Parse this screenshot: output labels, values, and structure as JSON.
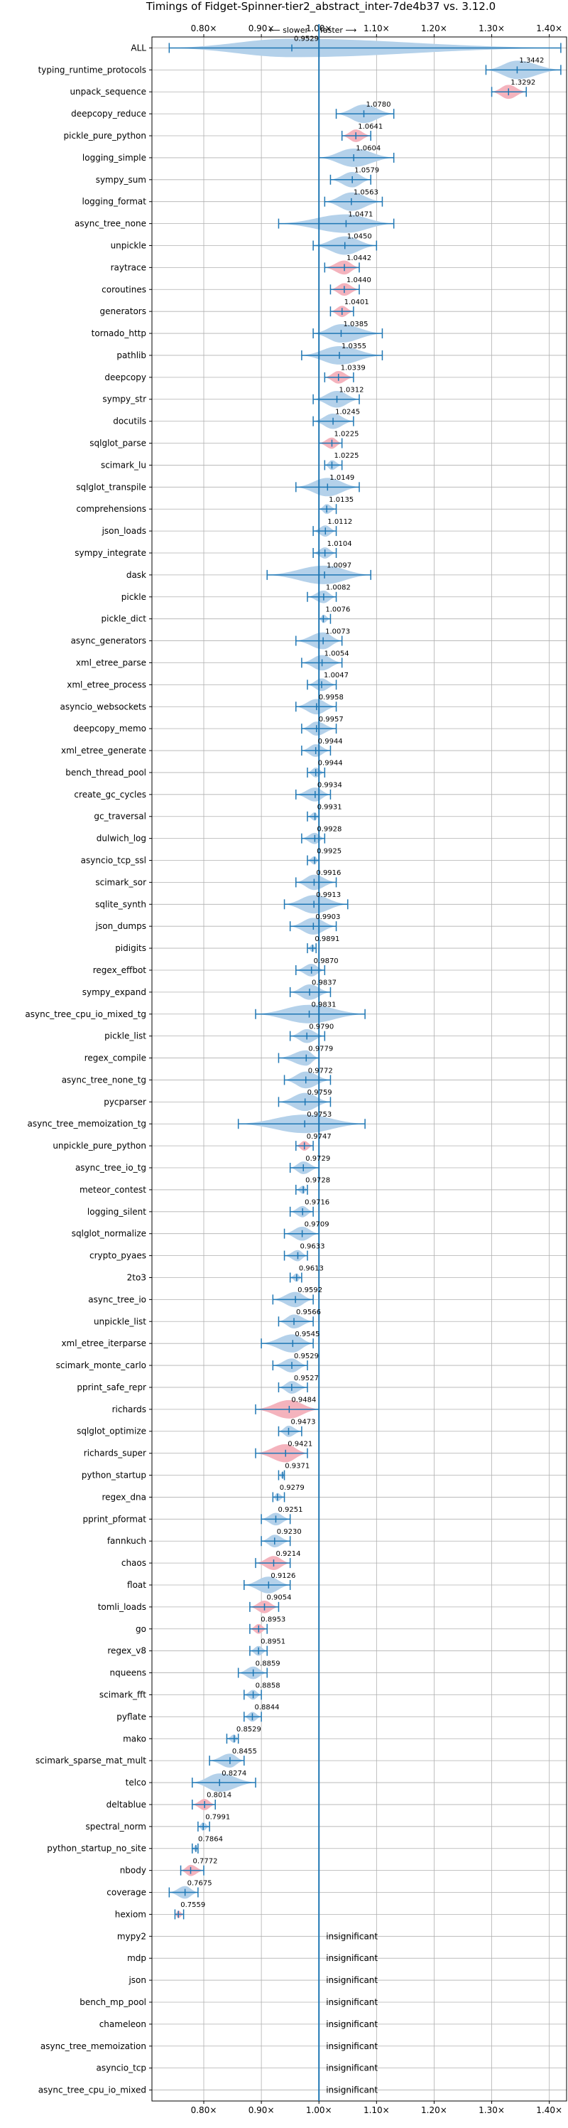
{
  "chart_data": {
    "type": "violin",
    "title": "Timings of Fidget-Spinner-tier2_abstract_inter-7de4b37 vs. 3.12.0",
    "direction_slower": "⟵ slower",
    "direction_faster": "faster ⟶",
    "xlim": [
      0.71,
      1.43
    ],
    "x_ticks": [
      {
        "value": 0.8,
        "label": "0.80×"
      },
      {
        "value": 0.9,
        "label": "0.90×"
      },
      {
        "value": 1.0,
        "label": "1.00×"
      },
      {
        "value": 1.1,
        "label": "1.10×"
      },
      {
        "value": 1.2,
        "label": "1.20×"
      },
      {
        "value": 1.3,
        "label": "1.30×"
      },
      {
        "value": 1.4,
        "label": "1.40×"
      }
    ],
    "reference_line": 1.0,
    "grid": true,
    "colors": {
      "blue": "#b4d1ea",
      "red": "#f4b3bd",
      "line": "#1f77b4"
    },
    "insignificant_label": "insignificant",
    "benchmarks": [
      {
        "name": "ALL",
        "value": 0.9529,
        "label": "0.9529",
        "lo": 0.74,
        "hi": 1.42,
        "color": "blue"
      },
      {
        "name": "typing_runtime_protocols",
        "value": 1.3442,
        "label": "1.3442",
        "lo": 1.29,
        "hi": 1.42,
        "color": "blue"
      },
      {
        "name": "unpack_sequence",
        "value": 1.3292,
        "label": "1.3292",
        "lo": 1.3,
        "hi": 1.36,
        "color": "red"
      },
      {
        "name": "deepcopy_reduce",
        "value": 1.078,
        "label": "1.0780",
        "lo": 1.03,
        "hi": 1.13,
        "color": "blue"
      },
      {
        "name": "pickle_pure_python",
        "value": 1.0641,
        "label": "1.0641",
        "lo": 1.04,
        "hi": 1.09,
        "color": "red"
      },
      {
        "name": "logging_simple",
        "value": 1.0604,
        "label": "1.0604",
        "lo": 1.0,
        "hi": 1.13,
        "color": "blue"
      },
      {
        "name": "sympy_sum",
        "value": 1.0579,
        "label": "1.0579",
        "lo": 1.02,
        "hi": 1.09,
        "color": "blue"
      },
      {
        "name": "logging_format",
        "value": 1.0563,
        "label": "1.0563",
        "lo": 1.01,
        "hi": 1.11,
        "color": "blue"
      },
      {
        "name": "async_tree_none",
        "value": 1.0471,
        "label": "1.0471",
        "lo": 0.93,
        "hi": 1.13,
        "color": "blue"
      },
      {
        "name": "unpickle",
        "value": 1.045,
        "label": "1.0450",
        "lo": 0.99,
        "hi": 1.1,
        "color": "blue"
      },
      {
        "name": "raytrace",
        "value": 1.0442,
        "label": "1.0442",
        "lo": 1.01,
        "hi": 1.07,
        "color": "red"
      },
      {
        "name": "coroutines",
        "value": 1.044,
        "label": "1.0440",
        "lo": 1.02,
        "hi": 1.07,
        "color": "red"
      },
      {
        "name": "generators",
        "value": 1.0401,
        "label": "1.0401",
        "lo": 1.02,
        "hi": 1.06,
        "color": "red"
      },
      {
        "name": "tornado_http",
        "value": 1.0385,
        "label": "1.0385",
        "lo": 0.99,
        "hi": 1.11,
        "color": "blue"
      },
      {
        "name": "pathlib",
        "value": 1.0355,
        "label": "1.0355",
        "lo": 0.97,
        "hi": 1.11,
        "color": "blue"
      },
      {
        "name": "deepcopy",
        "value": 1.0339,
        "label": "1.0339",
        "lo": 1.01,
        "hi": 1.06,
        "color": "red"
      },
      {
        "name": "sympy_str",
        "value": 1.0312,
        "label": "1.0312",
        "lo": 0.99,
        "hi": 1.07,
        "color": "blue"
      },
      {
        "name": "docutils",
        "value": 1.0245,
        "label": "1.0245",
        "lo": 0.99,
        "hi": 1.06,
        "color": "blue"
      },
      {
        "name": "sqlglot_parse",
        "value": 1.0225,
        "label": "1.0225",
        "lo": 1.0,
        "hi": 1.04,
        "color": "red"
      },
      {
        "name": "scimark_lu",
        "value": 1.0225,
        "label": "1.0225",
        "lo": 1.01,
        "hi": 1.04,
        "color": "blue"
      },
      {
        "name": "sqlglot_transpile",
        "value": 1.0149,
        "label": "1.0149",
        "lo": 0.96,
        "hi": 1.07,
        "color": "blue"
      },
      {
        "name": "comprehensions",
        "value": 1.0135,
        "label": "1.0135",
        "lo": 1.0,
        "hi": 1.03,
        "color": "blue"
      },
      {
        "name": "json_loads",
        "value": 1.0112,
        "label": "1.0112",
        "lo": 0.99,
        "hi": 1.03,
        "color": "blue"
      },
      {
        "name": "sympy_integrate",
        "value": 1.0104,
        "label": "1.0104",
        "lo": 0.99,
        "hi": 1.03,
        "color": "blue"
      },
      {
        "name": "dask",
        "value": 1.0097,
        "label": "1.0097",
        "lo": 0.91,
        "hi": 1.09,
        "color": "blue"
      },
      {
        "name": "pickle",
        "value": 1.0082,
        "label": "1.0082",
        "lo": 0.98,
        "hi": 1.03,
        "color": "blue"
      },
      {
        "name": "pickle_dict",
        "value": 1.0076,
        "label": "1.0076",
        "lo": 1.0,
        "hi": 1.02,
        "color": "blue"
      },
      {
        "name": "async_generators",
        "value": 1.0073,
        "label": "1.0073",
        "lo": 0.96,
        "hi": 1.04,
        "color": "blue"
      },
      {
        "name": "xml_etree_parse",
        "value": 1.0054,
        "label": "1.0054",
        "lo": 0.97,
        "hi": 1.04,
        "color": "blue"
      },
      {
        "name": "xml_etree_process",
        "value": 1.0047,
        "label": "1.0047",
        "lo": 0.98,
        "hi": 1.03,
        "color": "blue"
      },
      {
        "name": "asyncio_websockets",
        "value": 0.9958,
        "label": "0.9958",
        "lo": 0.96,
        "hi": 1.03,
        "color": "blue"
      },
      {
        "name": "deepcopy_memo",
        "value": 0.9957,
        "label": "0.9957",
        "lo": 0.97,
        "hi": 1.03,
        "color": "blue"
      },
      {
        "name": "xml_etree_generate",
        "value": 0.9944,
        "label": "0.9944",
        "lo": 0.97,
        "hi": 1.02,
        "color": "blue"
      },
      {
        "name": "bench_thread_pool",
        "value": 0.9944,
        "label": "0.9944",
        "lo": 0.98,
        "hi": 1.01,
        "color": "blue"
      },
      {
        "name": "create_gc_cycles",
        "value": 0.9934,
        "label": "0.9934",
        "lo": 0.96,
        "hi": 1.02,
        "color": "blue"
      },
      {
        "name": "gc_traversal",
        "value": 0.9931,
        "label": "0.9931",
        "lo": 0.98,
        "hi": 1.0,
        "color": "blue"
      },
      {
        "name": "dulwich_log",
        "value": 0.9928,
        "label": "0.9928",
        "lo": 0.97,
        "hi": 1.01,
        "color": "blue"
      },
      {
        "name": "asyncio_tcp_ssl",
        "value": 0.9925,
        "label": "0.9925",
        "lo": 0.98,
        "hi": 1.0,
        "color": "blue"
      },
      {
        "name": "scimark_sor",
        "value": 0.9916,
        "label": "0.9916",
        "lo": 0.96,
        "hi": 1.03,
        "color": "blue"
      },
      {
        "name": "sqlite_synth",
        "value": 0.9913,
        "label": "0.9913",
        "lo": 0.94,
        "hi": 1.05,
        "color": "blue"
      },
      {
        "name": "json_dumps",
        "value": 0.9903,
        "label": "0.9903",
        "lo": 0.95,
        "hi": 1.03,
        "color": "blue"
      },
      {
        "name": "pidigits",
        "value": 0.9891,
        "label": "0.9891",
        "lo": 0.98,
        "hi": 0.995,
        "color": "blue"
      },
      {
        "name": "regex_effbot",
        "value": 0.987,
        "label": "0.9870",
        "lo": 0.96,
        "hi": 1.01,
        "color": "blue"
      },
      {
        "name": "sympy_expand",
        "value": 0.9837,
        "label": "0.9837",
        "lo": 0.95,
        "hi": 1.02,
        "color": "blue"
      },
      {
        "name": "async_tree_cpu_io_mixed_tg",
        "value": 0.9831,
        "label": "0.9831",
        "lo": 0.89,
        "hi": 1.08,
        "color": "blue"
      },
      {
        "name": "pickle_list",
        "value": 0.979,
        "label": "0.9790",
        "lo": 0.95,
        "hi": 1.01,
        "color": "blue"
      },
      {
        "name": "regex_compile",
        "value": 0.9779,
        "label": "0.9779",
        "lo": 0.93,
        "hi": 1.0,
        "color": "blue"
      },
      {
        "name": "async_tree_none_tg",
        "value": 0.9772,
        "label": "0.9772",
        "lo": 0.94,
        "hi": 1.02,
        "color": "blue"
      },
      {
        "name": "pycparser",
        "value": 0.9759,
        "label": "0.9759",
        "lo": 0.93,
        "hi": 1.02,
        "color": "blue"
      },
      {
        "name": "async_tree_memoization_tg",
        "value": 0.9753,
        "label": "0.9753",
        "lo": 0.86,
        "hi": 1.08,
        "color": "blue"
      },
      {
        "name": "unpickle_pure_python",
        "value": 0.9747,
        "label": "0.9747",
        "lo": 0.96,
        "hi": 0.99,
        "color": "red"
      },
      {
        "name": "async_tree_io_tg",
        "value": 0.9729,
        "label": "0.9729",
        "lo": 0.95,
        "hi": 1.0,
        "color": "blue"
      },
      {
        "name": "meteor_contest",
        "value": 0.9728,
        "label": "0.9728",
        "lo": 0.96,
        "hi": 0.98,
        "color": "blue"
      },
      {
        "name": "logging_silent",
        "value": 0.9716,
        "label": "0.9716",
        "lo": 0.95,
        "hi": 0.99,
        "color": "blue"
      },
      {
        "name": "sqlglot_normalize",
        "value": 0.9709,
        "label": "0.9709",
        "lo": 0.94,
        "hi": 1.0,
        "color": "blue"
      },
      {
        "name": "crypto_pyaes",
        "value": 0.9633,
        "label": "0.9633",
        "lo": 0.94,
        "hi": 0.98,
        "color": "blue"
      },
      {
        "name": "2to3",
        "value": 0.9613,
        "label": "0.9613",
        "lo": 0.95,
        "hi": 0.97,
        "color": "blue"
      },
      {
        "name": "async_tree_io",
        "value": 0.9592,
        "label": "0.9592",
        "lo": 0.92,
        "hi": 0.99,
        "color": "blue"
      },
      {
        "name": "unpickle_list",
        "value": 0.9566,
        "label": "0.9566",
        "lo": 0.93,
        "hi": 0.99,
        "color": "blue"
      },
      {
        "name": "xml_etree_iterparse",
        "value": 0.9545,
        "label": "0.9545",
        "lo": 0.9,
        "hi": 0.99,
        "color": "blue"
      },
      {
        "name": "scimark_monte_carlo",
        "value": 0.9529,
        "label": "0.9529",
        "lo": 0.92,
        "hi": 0.98,
        "color": "blue"
      },
      {
        "name": "pprint_safe_repr",
        "value": 0.9527,
        "label": "0.9527",
        "lo": 0.93,
        "hi": 0.98,
        "color": "blue"
      },
      {
        "name": "richards",
        "value": 0.9484,
        "label": "0.9484",
        "lo": 0.89,
        "hi": 1.0,
        "color": "red"
      },
      {
        "name": "sqlglot_optimize",
        "value": 0.9473,
        "label": "0.9473",
        "lo": 0.93,
        "hi": 0.97,
        "color": "blue"
      },
      {
        "name": "richards_super",
        "value": 0.9421,
        "label": "0.9421",
        "lo": 0.89,
        "hi": 0.98,
        "color": "red"
      },
      {
        "name": "python_startup",
        "value": 0.9371,
        "label": "0.9371",
        "lo": 0.93,
        "hi": 0.94,
        "color": "blue"
      },
      {
        "name": "regex_dna",
        "value": 0.9279,
        "label": "0.9279",
        "lo": 0.92,
        "hi": 0.94,
        "color": "blue"
      },
      {
        "name": "pprint_pformat",
        "value": 0.9251,
        "label": "0.9251",
        "lo": 0.9,
        "hi": 0.95,
        "color": "blue"
      },
      {
        "name": "fannkuch",
        "value": 0.923,
        "label": "0.9230",
        "lo": 0.9,
        "hi": 0.95,
        "color": "blue"
      },
      {
        "name": "chaos",
        "value": 0.9214,
        "label": "0.9214",
        "lo": 0.89,
        "hi": 0.95,
        "color": "red"
      },
      {
        "name": "float",
        "value": 0.9126,
        "label": "0.9126",
        "lo": 0.87,
        "hi": 0.95,
        "color": "blue"
      },
      {
        "name": "tomli_loads",
        "value": 0.9054,
        "label": "0.9054",
        "lo": 0.88,
        "hi": 0.93,
        "color": "red"
      },
      {
        "name": "go",
        "value": 0.8953,
        "label": "0.8953",
        "lo": 0.88,
        "hi": 0.91,
        "color": "red"
      },
      {
        "name": "regex_v8",
        "value": 0.8951,
        "label": "0.8951",
        "lo": 0.88,
        "hi": 0.91,
        "color": "blue"
      },
      {
        "name": "nqueens",
        "value": 0.8859,
        "label": "0.8859",
        "lo": 0.86,
        "hi": 0.91,
        "color": "blue"
      },
      {
        "name": "scimark_fft",
        "value": 0.8858,
        "label": "0.8858",
        "lo": 0.87,
        "hi": 0.9,
        "color": "blue"
      },
      {
        "name": "pyflate",
        "value": 0.8844,
        "label": "0.8844",
        "lo": 0.87,
        "hi": 0.9,
        "color": "blue"
      },
      {
        "name": "mako",
        "value": 0.8529,
        "label": "0.8529",
        "lo": 0.84,
        "hi": 0.86,
        "color": "blue"
      },
      {
        "name": "scimark_sparse_mat_mult",
        "value": 0.8455,
        "label": "0.8455",
        "lo": 0.81,
        "hi": 0.87,
        "color": "blue"
      },
      {
        "name": "telco",
        "value": 0.8274,
        "label": "0.8274",
        "lo": 0.78,
        "hi": 0.89,
        "color": "blue"
      },
      {
        "name": "deltablue",
        "value": 0.8014,
        "label": "0.8014",
        "lo": 0.78,
        "hi": 0.82,
        "color": "red"
      },
      {
        "name": "spectral_norm",
        "value": 0.7991,
        "label": "0.7991",
        "lo": 0.79,
        "hi": 0.81,
        "color": "blue"
      },
      {
        "name": "python_startup_no_site",
        "value": 0.7864,
        "label": "0.7864",
        "lo": 0.78,
        "hi": 0.79,
        "color": "blue"
      },
      {
        "name": "nbody",
        "value": 0.7772,
        "label": "0.7772",
        "lo": 0.76,
        "hi": 0.8,
        "color": "red"
      },
      {
        "name": "coverage",
        "value": 0.7675,
        "label": "0.7675",
        "lo": 0.74,
        "hi": 0.79,
        "color": "blue"
      },
      {
        "name": "hexiom",
        "value": 0.7559,
        "label": "0.7559",
        "lo": 0.75,
        "hi": 0.765,
        "color": "red"
      },
      {
        "name": "mypy2",
        "insignificant": true
      },
      {
        "name": "mdp",
        "insignificant": true
      },
      {
        "name": "json",
        "insignificant": true
      },
      {
        "name": "bench_mp_pool",
        "insignificant": true
      },
      {
        "name": "chameleon",
        "insignificant": true
      },
      {
        "name": "async_tree_memoization",
        "insignificant": true
      },
      {
        "name": "asyncio_tcp",
        "insignificant": true
      },
      {
        "name": "async_tree_cpu_io_mixed",
        "insignificant": true
      }
    ]
  }
}
